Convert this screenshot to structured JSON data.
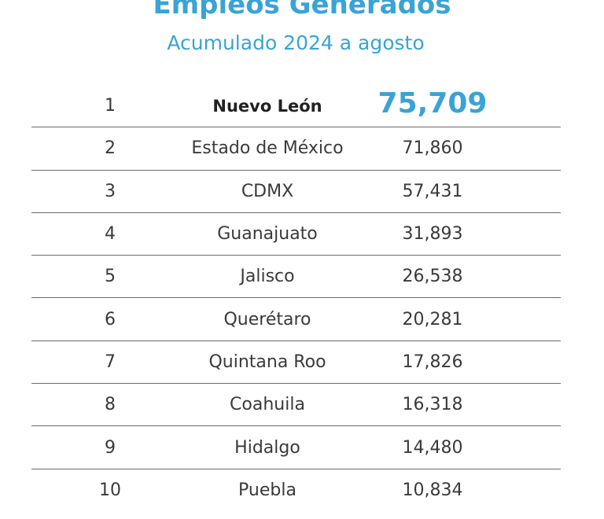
{
  "header": {
    "title": "Empleos Generados",
    "subtitle": "Acumulado 2024 a agosto"
  },
  "accent_color": "#3aa3d6",
  "rows": [
    {
      "rank": "1",
      "state": "Nuevo León",
      "value": "75,709"
    },
    {
      "rank": "2",
      "state": "Estado de México",
      "value": "71,860"
    },
    {
      "rank": "3",
      "state": "CDMX",
      "value": "57,431"
    },
    {
      "rank": "4",
      "state": "Guanajuato",
      "value": "31,893"
    },
    {
      "rank": "5",
      "state": "Jalisco",
      "value": "26,538"
    },
    {
      "rank": "6",
      "state": "Querétaro",
      "value": "20,281"
    },
    {
      "rank": "7",
      "state": "Quintana Roo",
      "value": "17,826"
    },
    {
      "rank": "8",
      "state": "Coahuila",
      "value": "16,318"
    },
    {
      "rank": "9",
      "state": "Hidalgo",
      "value": "14,480"
    },
    {
      "rank": "10",
      "state": "Puebla",
      "value": "10,834"
    }
  ]
}
